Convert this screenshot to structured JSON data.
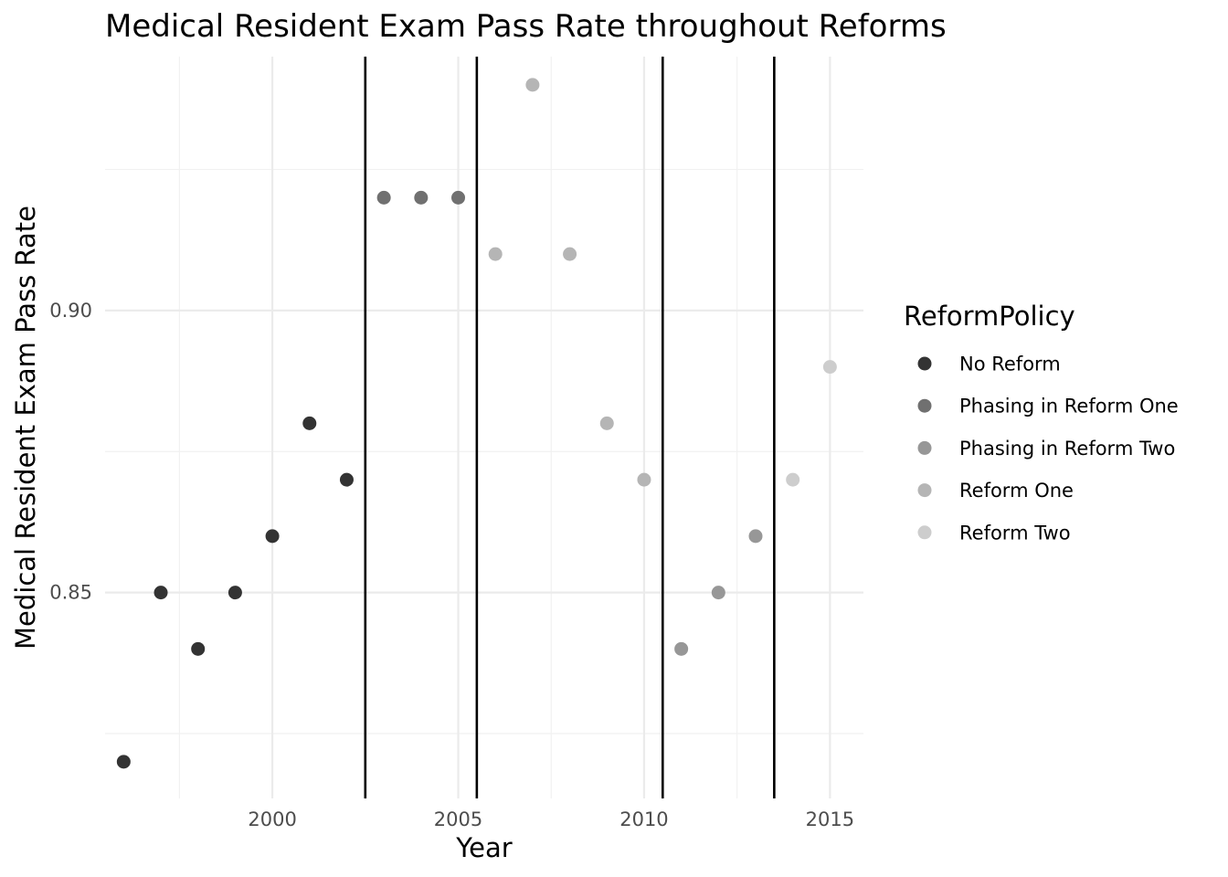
{
  "chart_data": {
    "type": "scatter",
    "title": "Medical Resident Exam Pass Rate throughout Reforms",
    "xlabel": "Year",
    "ylabel": "Medical Resident Exam Pass Rate",
    "xlim": [
      1995.5,
      2015.9
    ],
    "ylim": [
      0.8135,
      0.945
    ],
    "x_ticks": [
      2000,
      2005,
      2010,
      2015
    ],
    "x_tick_labels": [
      "2000",
      "2005",
      "2010",
      "2015"
    ],
    "x_minor_ticks": [
      1997.5,
      2002.5,
      2007.5,
      2012.5
    ],
    "y_ticks": [
      0.85,
      0.9
    ],
    "y_tick_labels": [
      "0.85",
      "0.90"
    ],
    "y_minor_ticks": [
      0.825,
      0.875,
      0.925
    ],
    "grid": true,
    "vlines": [
      2002.5,
      2005.5,
      2010.5,
      2013.5
    ],
    "legend": {
      "title": "ReformPolicy",
      "placement": "right",
      "entries": [
        "No Reform",
        "Phasing in Reform One",
        "Phasing in Reform Two",
        "Reform One",
        "Reform Two"
      ]
    },
    "colors": {
      "No Reform": "#333333",
      "Phasing in Reform One": "#707070",
      "Phasing in Reform Two": "#979797",
      "Reform One": "#b5b5b5",
      "Reform Two": "#cdcdcd"
    },
    "points": [
      {
        "x": 1996,
        "y": 0.82,
        "group": "No Reform"
      },
      {
        "x": 1997,
        "y": 0.85,
        "group": "No Reform"
      },
      {
        "x": 1998,
        "y": 0.84,
        "group": "No Reform"
      },
      {
        "x": 1999,
        "y": 0.85,
        "group": "No Reform"
      },
      {
        "x": 2000,
        "y": 0.86,
        "group": "No Reform"
      },
      {
        "x": 2001,
        "y": 0.88,
        "group": "No Reform"
      },
      {
        "x": 2002,
        "y": 0.87,
        "group": "No Reform"
      },
      {
        "x": 2003,
        "y": 0.92,
        "group": "Phasing in Reform One"
      },
      {
        "x": 2004,
        "y": 0.92,
        "group": "Phasing in Reform One"
      },
      {
        "x": 2005,
        "y": 0.92,
        "group": "Phasing in Reform One"
      },
      {
        "x": 2006,
        "y": 0.91,
        "group": "Reform One"
      },
      {
        "x": 2007,
        "y": 0.94,
        "group": "Reform One"
      },
      {
        "x": 2008,
        "y": 0.91,
        "group": "Reform One"
      },
      {
        "x": 2009,
        "y": 0.88,
        "group": "Reform One"
      },
      {
        "x": 2010,
        "y": 0.87,
        "group": "Reform One"
      },
      {
        "x": 2011,
        "y": 0.84,
        "group": "Phasing in Reform Two"
      },
      {
        "x": 2012,
        "y": 0.85,
        "group": "Phasing in Reform Two"
      },
      {
        "x": 2013,
        "y": 0.86,
        "group": "Phasing in Reform Two"
      },
      {
        "x": 2014,
        "y": 0.87,
        "group": "Reform Two"
      },
      {
        "x": 2015,
        "y": 0.89,
        "group": "Reform Two"
      }
    ]
  }
}
